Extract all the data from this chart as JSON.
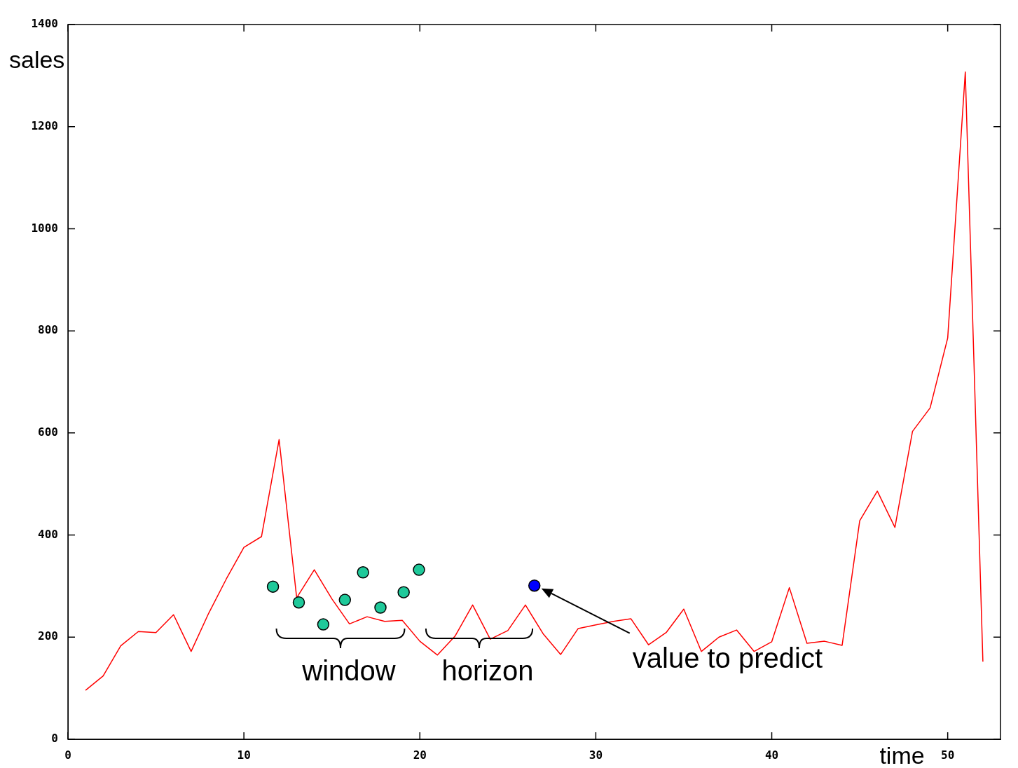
{
  "chart_data": {
    "type": "line",
    "xlabel": "time",
    "ylabel": "sales",
    "xlim": [
      0,
      53
    ],
    "xticks": [
      0,
      10,
      20,
      30,
      40,
      50
    ],
    "ylim": [
      0,
      1400
    ],
    "yticks": [
      0,
      200,
      400,
      600,
      800,
      1000,
      1200,
      1400
    ],
    "grid": false,
    "legend": false,
    "series": [
      {
        "type": "line",
        "color": "#ff0000",
        "marker": "none",
        "x": [
          1,
          2,
          3,
          4,
          5,
          6,
          7,
          8,
          9,
          10,
          11,
          12,
          13,
          14,
          15,
          16,
          17,
          18,
          19,
          20,
          21,
          22,
          23,
          24,
          25,
          26,
          27,
          28,
          29,
          30,
          31,
          32,
          33,
          34,
          35,
          36,
          37,
          38,
          39,
          40,
          41,
          42,
          43,
          44,
          45,
          46,
          47,
          48,
          49,
          50,
          51,
          52
        ],
        "values": [
          96,
          124,
          183,
          211,
          209,
          244,
          172,
          247,
          314,
          376,
          397,
          587,
          277,
          332,
          275,
          226,
          240,
          231,
          233,
          192,
          165,
          202,
          263,
          196,
          213,
          263,
          207,
          166,
          217,
          224,
          231,
          236,
          185,
          209,
          255,
          172,
          200,
          214,
          172,
          191,
          297,
          188,
          192,
          184,
          428,
          486,
          415,
          603,
          649,
          786,
          1307,
          152
        ]
      },
      {
        "type": "scatter",
        "color": "#1fc99a",
        "marker": "circle",
        "x": [
          11.65,
          13.12,
          14.51,
          15.74,
          16.77,
          17.76,
          19.08,
          19.95
        ],
        "values": [
          299,
          268,
          225,
          273,
          327,
          258,
          288,
          332
        ]
      },
      {
        "type": "scatter",
        "color": "#0000ff",
        "marker": "circle",
        "x": [
          26.51
        ],
        "values": [
          301
        ]
      }
    ],
    "annotations": [
      "window",
      "horizon",
      "value to predict"
    ]
  }
}
